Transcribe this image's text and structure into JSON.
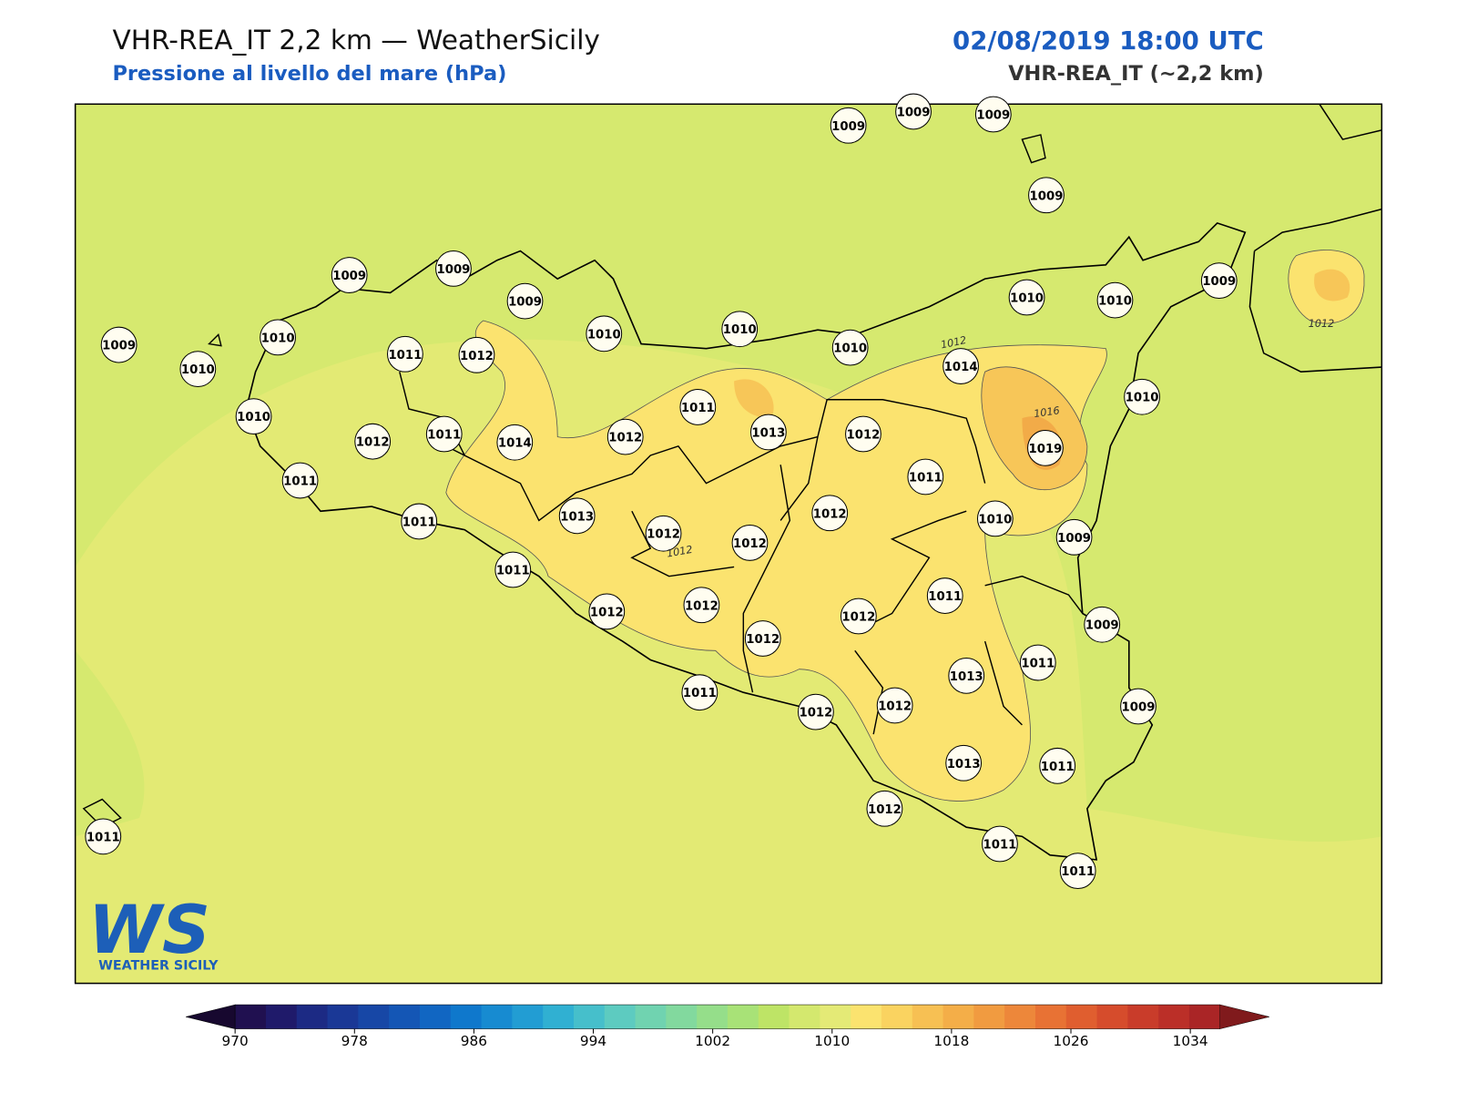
{
  "header": {
    "title": "VHR-REA_IT 2,2 km — WeatherSicily",
    "subtitle": "Pressione al livello del mare (hPa)",
    "datetime": "02/08/2019 18:00 UTC",
    "model": "VHR-REA_IT (~2,2 km)"
  },
  "stations": [
    1009,
    1009,
    1009,
    1009,
    1009,
    1009,
    1009,
    1009,
    1010,
    1010,
    1010,
    1011,
    1012,
    1010,
    1010,
    1010,
    1010,
    1010,
    1009,
    1014,
    1010,
    1011,
    1013,
    1012,
    1019,
    1012,
    1011,
    1014,
    1012,
    1011,
    1011,
    1012,
    1010,
    1009,
    1011,
    1013,
    1012,
    1012,
    1011,
    1011,
    1012,
    1012,
    1012,
    1009,
    1012,
    1011,
    1013,
    1011,
    1012,
    1012,
    1009,
    1013,
    1011,
    1012,
    1011,
    1011,
    1011
  ],
  "contour_labels": [
    "1012",
    "1016",
    "1012",
    "1012"
  ],
  "logo": {
    "mark": "WS",
    "name": "WEATHER SICILY"
  },
  "colorbar": {
    "lim": [
      970,
      1034
    ],
    "ticks": [
      970,
      978,
      986,
      994,
      1002,
      1010,
      1018,
      1026,
      1034
    ],
    "colors": [
      "#201050",
      "#1f1a6a",
      "#1c2a84",
      "#1a3896",
      "#1747a6",
      "#1456b5",
      "#1166c2",
      "#0f78cc",
      "#178bd1",
      "#229dd3",
      "#30b0d2",
      "#46bfcb",
      "#5dcbc0",
      "#70d3b0",
      "#82d99e",
      "#95de8a",
      "#a8e277",
      "#bee466",
      "#d4e86e",
      "#e4ea76",
      "#fbe36f",
      "#fad360",
      "#f7c053",
      "#f4ae48",
      "#f19b40",
      "#ed873a",
      "#e87234",
      "#e05e2f",
      "#d64c2c",
      "#c93c2a",
      "#bb2f28",
      "#aa2526"
    ],
    "under": "#17082f",
    "over": "#801a1c"
  }
}
